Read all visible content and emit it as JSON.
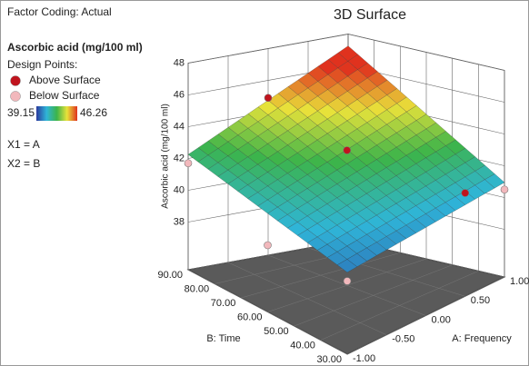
{
  "chart_data": {
    "type": "surface",
    "title": "3D Surface",
    "panel": {
      "coding": "Factor Coding: Actual",
      "response": "Ascorbic acid (mg/100 ml)",
      "points_heading": "Design Points:",
      "factor_1": "X1 = A",
      "factor_2": "X2 = B"
    },
    "colorscale": {
      "low": 39.15,
      "high": 46.26,
      "colors": [
        "#2b3a9e",
        "#2fb5d8",
        "#3cb44a",
        "#e8e23a",
        "#e0321e"
      ]
    },
    "xlabel": "A: Frequency",
    "ylabel": "B: Time",
    "zlabel": "Ascorbic acid (mg/100 ml)",
    "xlim": [
      -1,
      1
    ],
    "ylim": [
      30,
      90
    ],
    "zlim": [
      35,
      48
    ],
    "xticks": [
      {
        "value": -1,
        "label": "-1.00"
      },
      {
        "value": -0.5,
        "label": "-0.50"
      },
      {
        "value": 0,
        "label": "0.00"
      },
      {
        "value": 0.5,
        "label": "0.50"
      },
      {
        "value": 1,
        "label": "1.00"
      }
    ],
    "yticks": [
      {
        "value": 30,
        "label": "30.00"
      },
      {
        "value": 40,
        "label": "40.00"
      },
      {
        "value": 50,
        "label": "50.00"
      },
      {
        "value": 60,
        "label": "60.00"
      },
      {
        "value": 70,
        "label": "70.00"
      },
      {
        "value": 80,
        "label": "80.00"
      },
      {
        "value": 90,
        "label": "90.00"
      }
    ],
    "zticks": [
      38,
      40,
      42,
      44,
      46,
      48
    ],
    "grid_x": [
      -1,
      -0.5,
      0,
      0.5,
      1
    ],
    "grid_y": [
      30,
      45,
      60,
      75,
      90
    ],
    "z": [
      [
        40.15,
        40.68,
        41.2,
        41.73,
        42.25
      ],
      [
        40.35,
        41.14,
        41.93,
        42.71,
        43.5
      ],
      [
        40.55,
        41.6,
        42.65,
        43.7,
        44.75
      ],
      [
        40.75,
        42.06,
        43.38,
        44.69,
        46.0
      ],
      [
        40.95,
        42.53,
        44.1,
        45.68,
        47.25
      ]
    ],
    "series": [
      {
        "name": "Above Surface",
        "color": "#c0141e",
        "a": [
          0,
          0,
          0.5
        ],
        "b": [
          90,
          60,
          30
        ],
        "z": [
          44.9,
          43.5,
          41.5
        ]
      },
      {
        "name": "Below Surface",
        "color": "#f2b8bc",
        "a": [
          -1,
          -1,
          1,
          -1
        ],
        "b": [
          90,
          30,
          30,
          60
        ],
        "z": [
          41.7,
          39.6,
          40.5,
          39.2
        ]
      }
    ]
  }
}
